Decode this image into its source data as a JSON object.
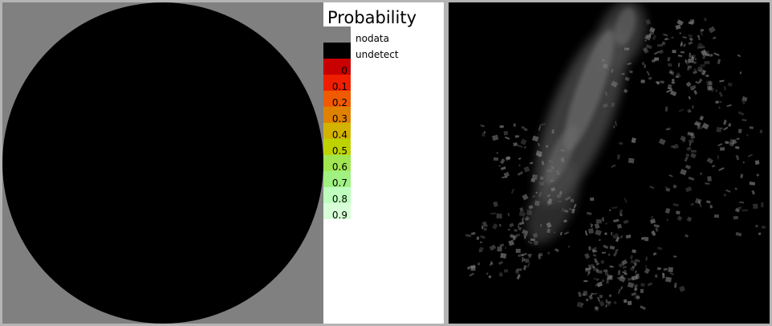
{
  "legend": {
    "title": "Probability",
    "special": [
      {
        "label": "nodata",
        "color": "#808080"
      },
      {
        "label": "undetect",
        "color": "#000000"
      }
    ],
    "classes": [
      {
        "label": "0",
        "color": "#c80000"
      },
      {
        "label": "0.1",
        "color": "#f01e00"
      },
      {
        "label": "0.2",
        "color": "#f05a00"
      },
      {
        "label": "0.3",
        "color": "#e08200"
      },
      {
        "label": "0.4",
        "color": "#d2b400"
      },
      {
        "label": "0.5",
        "color": "#bed200"
      },
      {
        "label": "0.6",
        "color": "#a0e650"
      },
      {
        "label": "0.7",
        "color": "#a0f082"
      },
      {
        "label": "0.8",
        "color": "#beffbe"
      },
      {
        "label": "0.9",
        "color": "#d7ffd7"
      }
    ]
  },
  "left_image": {
    "outside_color": "#808080",
    "disc_color": "#000000"
  },
  "right_image": {
    "background_color": "#000000",
    "echo_color": "#7a7a7a"
  }
}
